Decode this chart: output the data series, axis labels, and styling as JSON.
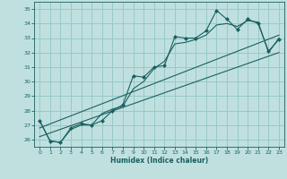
{
  "xlabel": "Humidex (Indice chaleur)",
  "bg_color": "#c0e0e0",
  "grid_color": "#98c8c8",
  "line_color": "#1a6060",
  "xlim": [
    -0.5,
    23.5
  ],
  "ylim": [
    25.5,
    35.5
  ],
  "yticks": [
    26,
    27,
    28,
    29,
    30,
    31,
    32,
    33,
    34,
    35
  ],
  "xticks": [
    0,
    1,
    2,
    3,
    4,
    5,
    6,
    7,
    8,
    9,
    10,
    11,
    12,
    13,
    14,
    15,
    16,
    17,
    18,
    19,
    20,
    21,
    22,
    23
  ],
  "series": [
    {
      "x": [
        0,
        1,
        2,
        3,
        4,
        5,
        6,
        7,
        8,
        9,
        10,
        11,
        12,
        13,
        14,
        15,
        16,
        17,
        18,
        19,
        20,
        21,
        22,
        23
      ],
      "y": [
        27.3,
        25.9,
        25.8,
        26.8,
        27.1,
        27.0,
        27.3,
        28.0,
        28.4,
        30.4,
        30.3,
        31.0,
        31.1,
        33.1,
        33.0,
        33.0,
        33.5,
        34.9,
        34.3,
        33.6,
        34.3,
        34.0,
        32.1,
        32.9
      ],
      "marker": "D",
      "markersize": 2.0
    },
    {
      "x": [
        0,
        1,
        2,
        3,
        4,
        5,
        6,
        7,
        8,
        9,
        10,
        11,
        12,
        13,
        14,
        15,
        16,
        17,
        18,
        19,
        20,
        21,
        22,
        23
      ],
      "y": [
        27.3,
        25.9,
        25.8,
        26.7,
        27.0,
        27.0,
        27.8,
        28.1,
        28.3,
        29.5,
        30.0,
        30.9,
        31.4,
        32.6,
        32.7,
        32.9,
        33.2,
        33.9,
        34.0,
        33.8,
        34.2,
        34.1,
        32.0,
        33.0
      ],
      "marker": null,
      "markersize": 0
    },
    {
      "x": [
        0,
        23
      ],
      "y": [
        26.2,
        32.0
      ],
      "marker": null,
      "markersize": 0
    },
    {
      "x": [
        0,
        23
      ],
      "y": [
        26.8,
        33.2
      ],
      "marker": null,
      "markersize": 0
    }
  ]
}
